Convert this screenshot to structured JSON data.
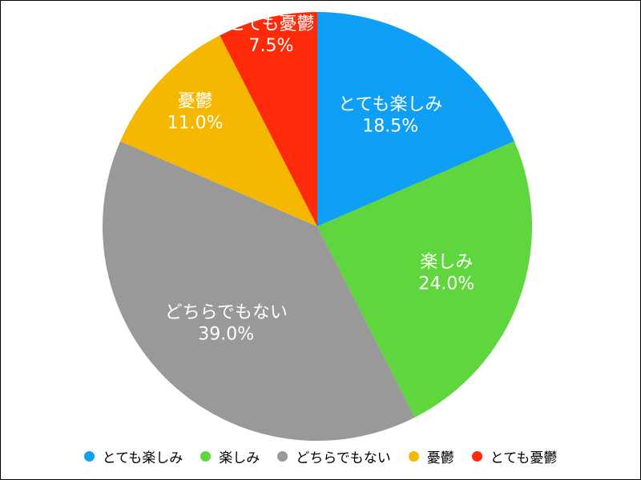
{
  "chart_data": {
    "type": "pie",
    "categories": [
      "とても楽しみ",
      "楽しみ",
      "どちらでもない",
      "憂鬱",
      "とても憂鬱"
    ],
    "values": [
      18.5,
      24.0,
      39.0,
      11.0,
      7.5
    ],
    "value_labels": [
      "18.5%",
      "24.0%",
      "39.0%",
      "11.0%",
      "7.5%"
    ],
    "colors": [
      "#0fa0f5",
      "#5fd63d",
      "#999999",
      "#f5b700",
      "#ff2a0a"
    ],
    "legend_position": "bottom",
    "start": "top",
    "direction": "clockwise"
  }
}
